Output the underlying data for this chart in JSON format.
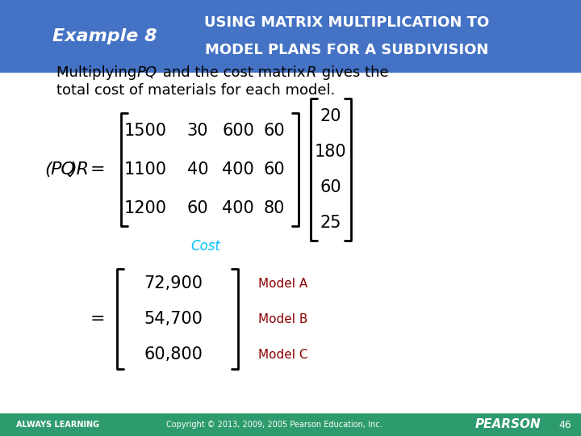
{
  "header_bg_color": "#4472C4",
  "header_text_color": "#FFFFFF",
  "example_label": "Example 8",
  "title_line1": "USING MATRIX MULTIPLICATION TO",
  "title_line2": "MODEL PLANS FOR A SUBDIVISION",
  "body_bg": "#FFFFFF",
  "footer_bg": "#2E9B6E",
  "footer_text_color": "#FFFFFF",
  "footer_left": "ALWAYS LEARNING",
  "footer_center": "Copyright © 2013, 2009, 2005 Pearson Education, Inc.",
  "footer_right": "PEARSON",
  "footer_page": "46",
  "intro_text_plain": "Multiplying ",
  "intro_italic1": "PQ",
  "intro_text2": " and the cost matrix ",
  "intro_italic2": "R",
  "intro_text3": " gives the\ntotal cost of materials for each model.",
  "pq_label": "(PQ)R =",
  "matrix_pq_rows": [
    [
      "1500",
      "30",
      "600",
      "60"
    ],
    [
      "1100",
      "40",
      "400",
      "60"
    ],
    [
      "1200",
      "60",
      "400",
      "80"
    ]
  ],
  "matrix_r_rows": [
    "20",
    "180",
    "60",
    "25"
  ],
  "cost_label": "Cost",
  "cost_color": "#00BFFF",
  "eq_label": "=",
  "result_rows": [
    "72,900",
    "54,700",
    "60,800"
  ],
  "model_labels": [
    "Model A",
    "Model B",
    "Model C"
  ],
  "model_color": "#8B0000",
  "bracket_color": "#000000",
  "text_color": "#000000"
}
